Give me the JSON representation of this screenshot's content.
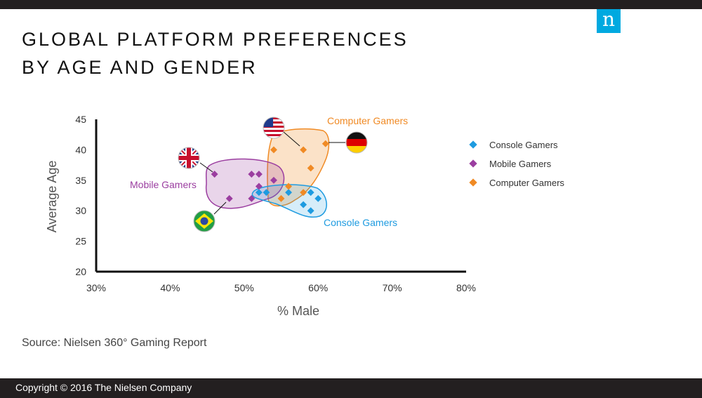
{
  "header": {
    "logo_letter": "n"
  },
  "title": {
    "line1": "GLOBAL PLATFORM PREFERENCES",
    "line2": "BY AGE AND GENDER"
  },
  "source": "Source: Nielsen 360° Gaming Report",
  "footer": {
    "copyright": "Copyright © 2016 The Nielsen Company"
  },
  "colors": {
    "console": "#1e9be0",
    "mobile": "#9b3ea0",
    "computer": "#f08a24",
    "dark": "#231f20",
    "brand": "#00a9e0"
  },
  "chart_data": {
    "type": "scatter",
    "xlabel": "% Male",
    "ylabel": "Average Age",
    "xlim": [
      30,
      80
    ],
    "ylim": [
      20,
      45
    ],
    "x_ticks": [
      "30%",
      "40%",
      "50%",
      "60%",
      "70%",
      "80%"
    ],
    "y_ticks": [
      "20",
      "25",
      "30",
      "35",
      "40",
      "45"
    ],
    "legend_position": "right",
    "series": [
      {
        "name": "Console Gamers",
        "key": "console",
        "points": [
          [
            52,
            33
          ],
          [
            53,
            33
          ],
          [
            56,
            33
          ],
          [
            58,
            31
          ],
          [
            59,
            30
          ],
          [
            59,
            33
          ],
          [
            60,
            32
          ]
        ]
      },
      {
        "name": "Mobile Gamers",
        "key": "mobile",
        "points": [
          [
            46,
            36
          ],
          [
            48,
            32
          ],
          [
            51,
            36
          ],
          [
            51,
            32
          ],
          [
            52,
            36
          ],
          [
            52,
            34
          ],
          [
            54,
            35
          ]
        ]
      },
      {
        "name": "Computer Gamers",
        "key": "computer",
        "points": [
          [
            54,
            40
          ],
          [
            55,
            32
          ],
          [
            56,
            34
          ],
          [
            58,
            40
          ],
          [
            58,
            33
          ],
          [
            59,
            37
          ],
          [
            61,
            41
          ]
        ]
      }
    ],
    "annotations": [
      {
        "text": "Computer Gamers",
        "key": "computer"
      },
      {
        "text": "Mobile Gamers",
        "key": "mobile"
      },
      {
        "text": "Console Gamers",
        "key": "console"
      }
    ],
    "flags": [
      {
        "name": "us-flag-icon"
      },
      {
        "name": "uk-flag-icon"
      },
      {
        "name": "germany-flag-icon"
      },
      {
        "name": "brazil-flag-icon"
      }
    ]
  }
}
